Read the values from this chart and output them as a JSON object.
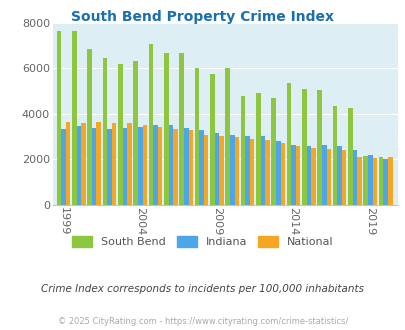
{
  "title": "South Bend Property Crime Index",
  "years": [
    1999,
    2000,
    2001,
    2002,
    2003,
    2004,
    2005,
    2006,
    2007,
    2008,
    2009,
    2010,
    2011,
    2012,
    2013,
    2014,
    2015,
    2016,
    2017,
    2018,
    2019,
    2020
  ],
  "south_bend": [
    7650,
    7650,
    6850,
    6480,
    6200,
    6350,
    7100,
    6700,
    6700,
    6000,
    5750,
    6020,
    4800,
    4900,
    4700,
    5380,
    5100,
    5030,
    4330,
    4250,
    2150,
    2100
  ],
  "indiana": [
    3350,
    3480,
    3360,
    3320,
    3380,
    3420,
    3490,
    3490,
    3360,
    3280,
    3140,
    3080,
    3020,
    3010,
    2800,
    2620,
    2600,
    2620,
    2580,
    2410,
    2170,
    2000
  ],
  "national": [
    3620,
    3610,
    3640,
    3610,
    3590,
    3510,
    3440,
    3340,
    3280,
    3050,
    3020,
    2970,
    2900,
    2860,
    2730,
    2600,
    2500,
    2450,
    2400,
    2100,
    2050,
    2100
  ],
  "south_bend_color": "#8dc63f",
  "indiana_color": "#4da6e8",
  "national_color": "#f5a623",
  "plot_bg": "#ddeef5",
  "subtitle": "Crime Index corresponds to incidents per 100,000 inhabitants",
  "footer": "© 2025 CityRating.com - https://www.cityrating.com/crime-statistics/",
  "ylim": [
    0,
    8000
  ],
  "yticks": [
    0,
    2000,
    4000,
    6000,
    8000
  ],
  "xtick_labels": [
    "1999",
    "2004",
    "2009",
    "2014",
    "2019"
  ],
  "xtick_positions": [
    1999,
    2004,
    2009,
    2014,
    2019
  ]
}
